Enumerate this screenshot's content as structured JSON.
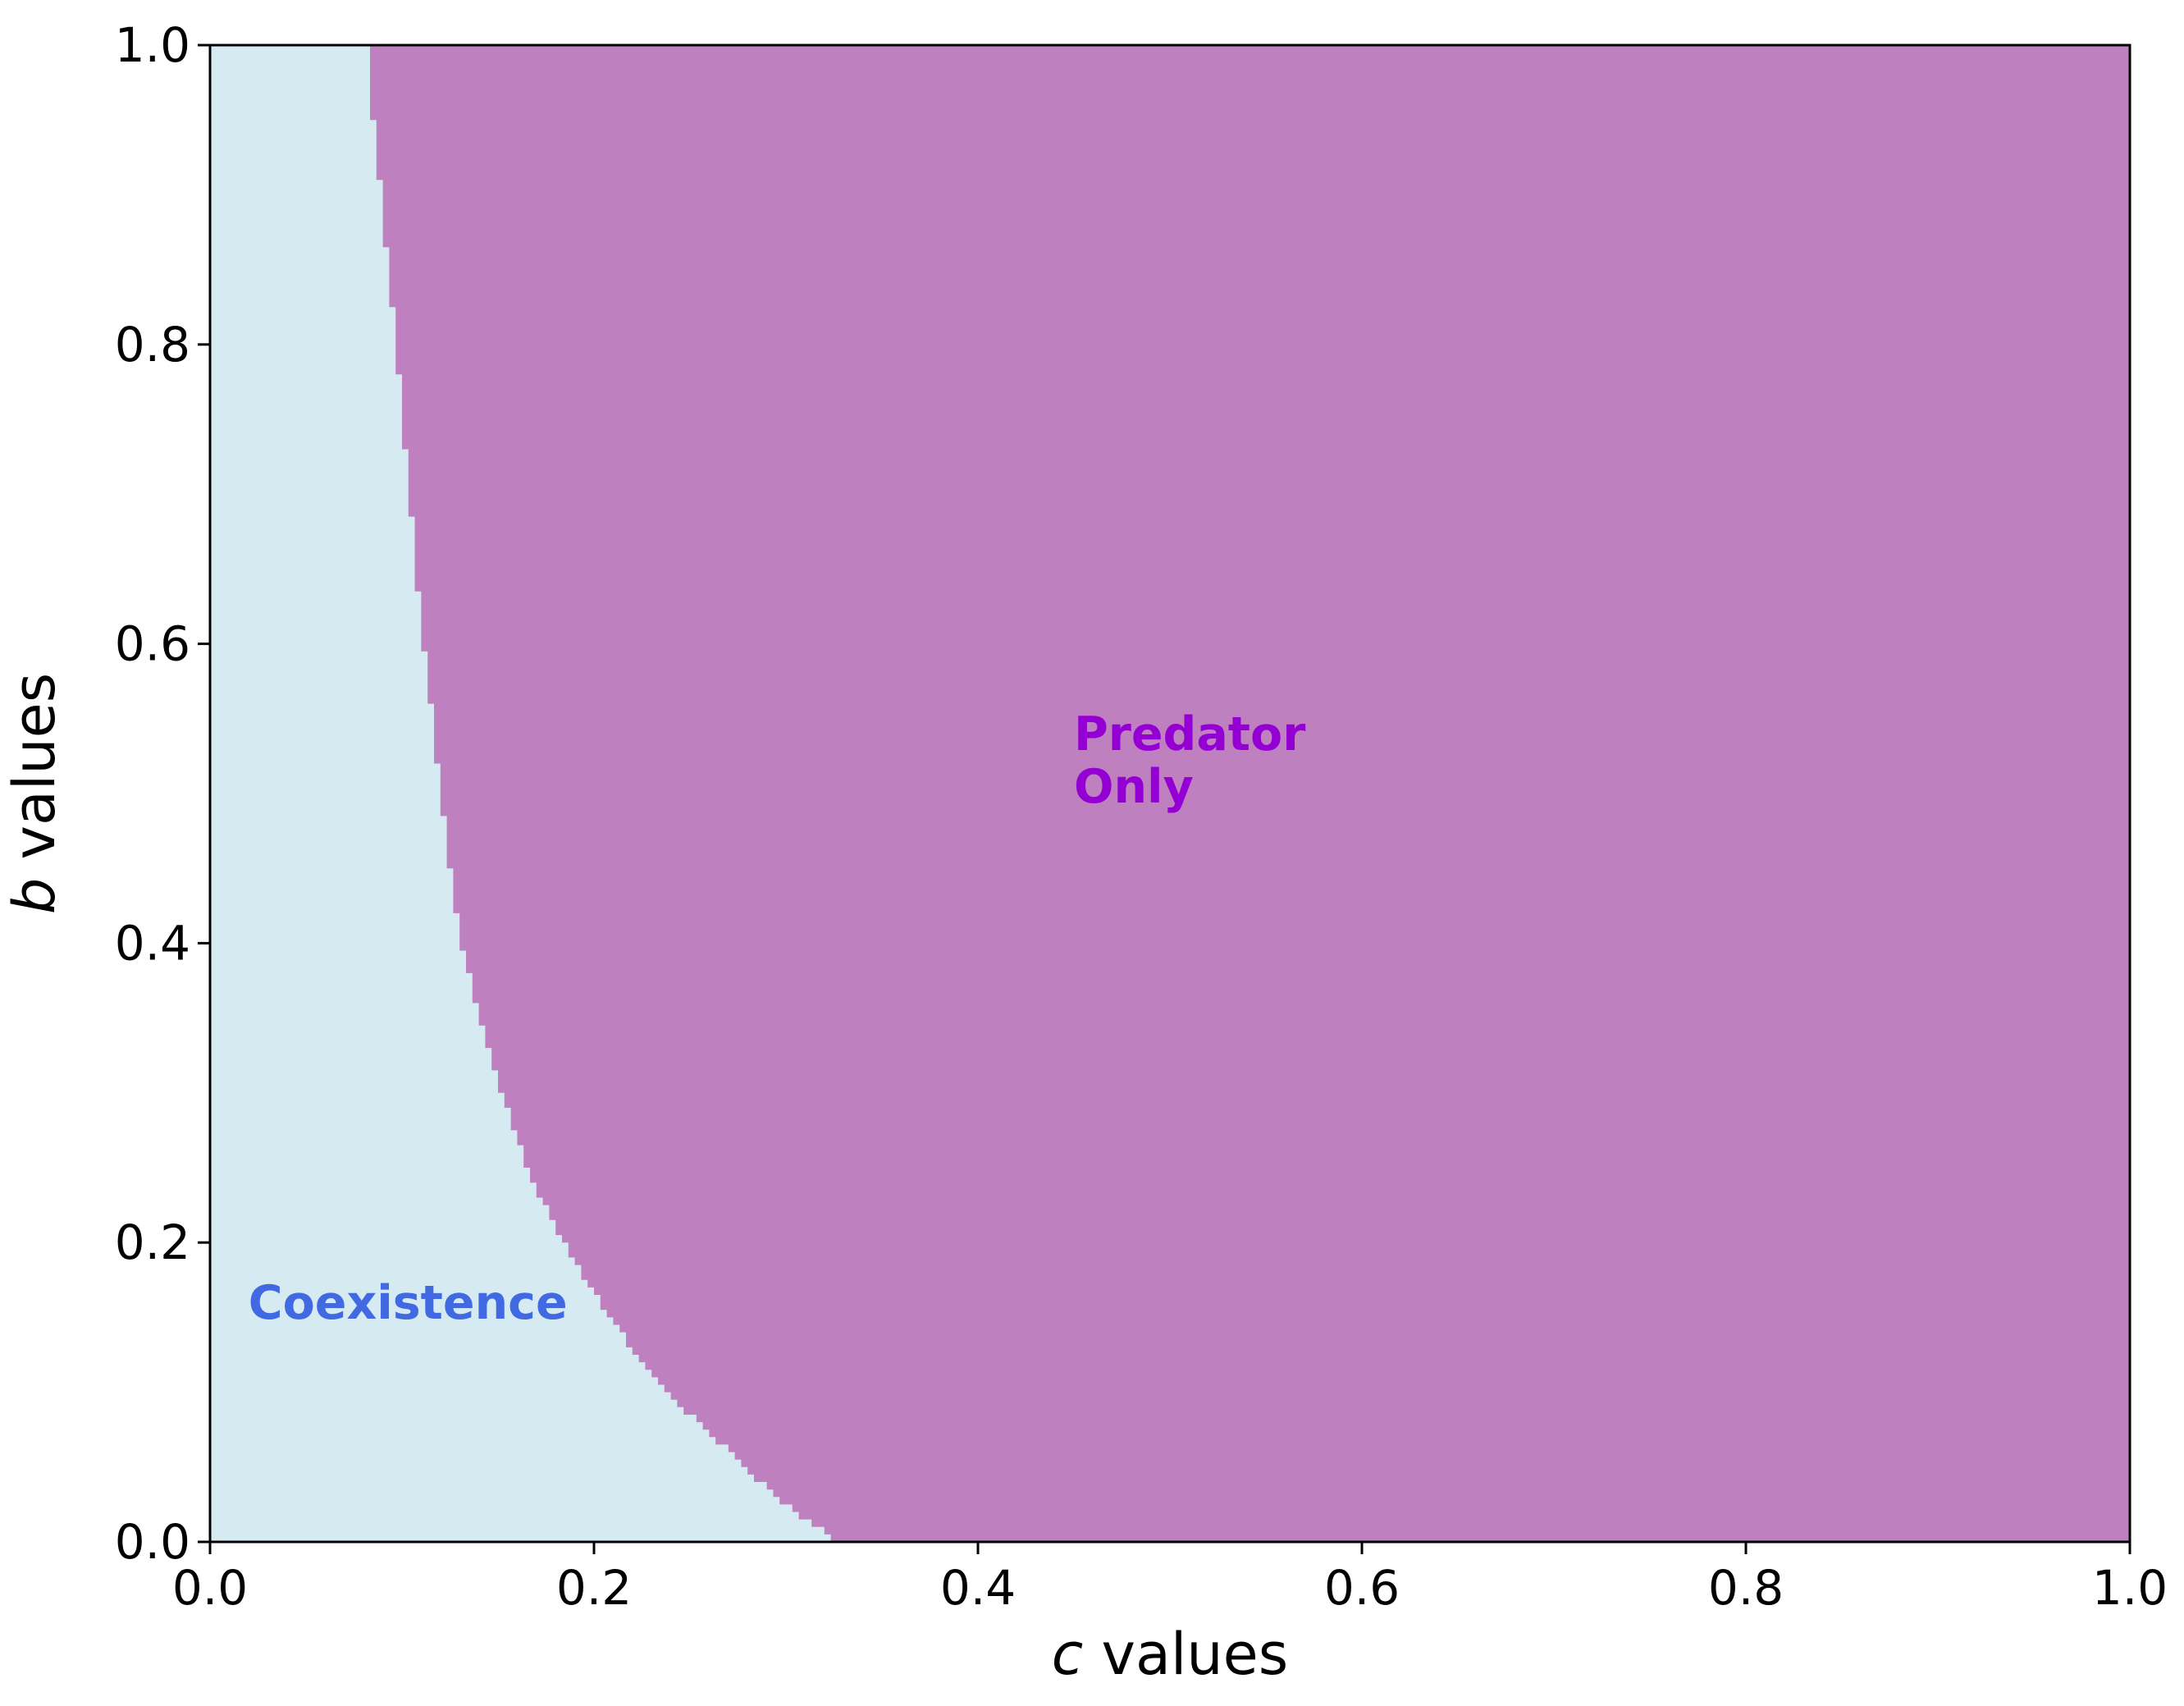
{
  "chart_data": {
    "type": "heatmap",
    "title": "",
    "xlabel": {
      "var": "c",
      "text": " values"
    },
    "ylabel": {
      "var": "b",
      "text": " values"
    },
    "xlim": [
      0.0,
      1.0
    ],
    "ylim": [
      0.0,
      1.0
    ],
    "x_ticks": [
      "0.0",
      "0.2",
      "0.4",
      "0.6",
      "0.8",
      "1.0"
    ],
    "y_ticks": [
      "0.0",
      "0.2",
      "0.4",
      "0.6",
      "0.8",
      "1.0"
    ],
    "grid": false,
    "legend": "none",
    "regions": [
      {
        "name": "Coexistence",
        "color": "#d6eaf1",
        "label_color": "#4169e1"
      },
      {
        "name": "Predator Only",
        "color": "#bf80bf",
        "label_color": "#9400d3"
      }
    ],
    "labels": [
      {
        "lines": [
          "Coexistence"
        ],
        "x": 0.02,
        "y": 0.16,
        "color": "#4169e1"
      },
      {
        "lines": [
          "Predator",
          "Only"
        ],
        "x": 0.45,
        "y": 0.54,
        "color": "#9400d3"
      }
    ],
    "boundary": {
      "description": "c value separating Coexistence (left) from Predator Only (right) at each b",
      "b": [
        0.0,
        0.02,
        0.05,
        0.08,
        0.1,
        0.15,
        0.2,
        0.25,
        0.3,
        0.35,
        0.4,
        0.45,
        0.5,
        0.55,
        0.6,
        0.65,
        0.7,
        0.75,
        0.8,
        0.85,
        0.9,
        0.95,
        1.0
      ],
      "c": [
        0.327,
        0.305,
        0.278,
        0.255,
        0.237,
        0.208,
        0.184,
        0.165,
        0.152,
        0.14,
        0.131,
        0.125,
        0.12,
        0.116,
        0.111,
        0.107,
        0.104,
        0.1,
        0.097,
        0.093,
        0.089,
        0.085,
        0.082
      ]
    }
  }
}
